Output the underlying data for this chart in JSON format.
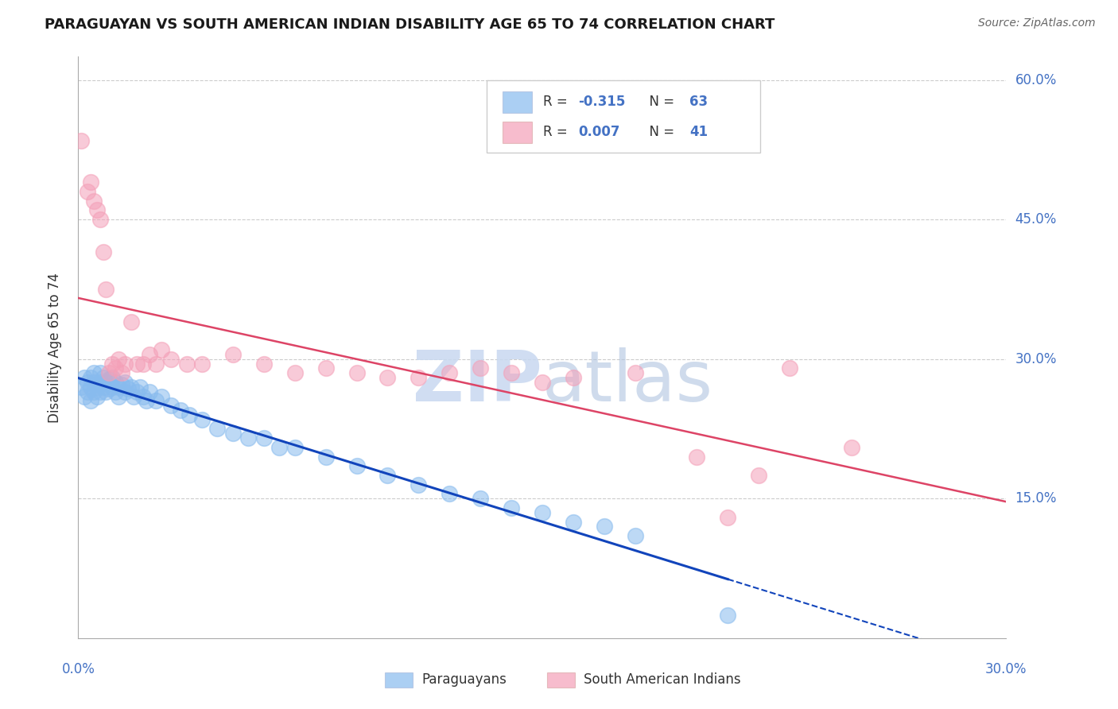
{
  "title": "PARAGUAYAN VS SOUTH AMERICAN INDIAN DISABILITY AGE 65 TO 74 CORRELATION CHART",
  "source": "Source: ZipAtlas.com",
  "ylabel": "Disability Age 65 to 74",
  "xlim": [
    0.0,
    0.3
  ],
  "ylim": [
    0.0,
    0.625
  ],
  "xticks": [
    0.0,
    0.05,
    0.1,
    0.15,
    0.2,
    0.25,
    0.3
  ],
  "yticks": [
    0.15,
    0.3,
    0.45,
    0.6
  ],
  "yticklabels": [
    "15.0%",
    "30.0%",
    "45.0%",
    "60.0%"
  ],
  "blue_color": "#88bbee",
  "pink_color": "#f4a0b8",
  "blue_line_color": "#1144bb",
  "pink_line_color": "#dd4466",
  "watermark_text": "ZIPatlas",
  "blue_R": -0.315,
  "blue_N": 63,
  "pink_R": 0.007,
  "pink_N": 41,
  "blue_scatter_x": [
    0.001,
    0.002,
    0.002,
    0.003,
    0.003,
    0.004,
    0.004,
    0.004,
    0.005,
    0.005,
    0.005,
    0.006,
    0.006,
    0.007,
    0.007,
    0.007,
    0.008,
    0.008,
    0.009,
    0.009,
    0.01,
    0.01,
    0.011,
    0.011,
    0.012,
    0.012,
    0.013,
    0.013,
    0.014,
    0.015,
    0.015,
    0.016,
    0.017,
    0.018,
    0.019,
    0.02,
    0.021,
    0.022,
    0.023,
    0.025,
    0.027,
    0.03,
    0.033,
    0.036,
    0.04,
    0.045,
    0.05,
    0.055,
    0.06,
    0.065,
    0.07,
    0.08,
    0.09,
    0.1,
    0.11,
    0.12,
    0.13,
    0.14,
    0.15,
    0.16,
    0.17,
    0.18,
    0.21
  ],
  "blue_scatter_y": [
    0.27,
    0.26,
    0.28,
    0.265,
    0.275,
    0.255,
    0.27,
    0.28,
    0.265,
    0.275,
    0.285,
    0.26,
    0.27,
    0.275,
    0.285,
    0.265,
    0.27,
    0.28,
    0.265,
    0.275,
    0.268,
    0.278,
    0.27,
    0.28,
    0.265,
    0.275,
    0.27,
    0.26,
    0.272,
    0.275,
    0.265,
    0.268,
    0.27,
    0.26,
    0.265,
    0.27,
    0.26,
    0.255,
    0.265,
    0.255,
    0.26,
    0.25,
    0.245,
    0.24,
    0.235,
    0.225,
    0.22,
    0.215,
    0.215,
    0.205,
    0.205,
    0.195,
    0.185,
    0.175,
    0.165,
    0.155,
    0.15,
    0.14,
    0.135,
    0.125,
    0.12,
    0.11,
    0.025
  ],
  "pink_scatter_x": [
    0.001,
    0.003,
    0.004,
    0.005,
    0.006,
    0.007,
    0.008,
    0.009,
    0.01,
    0.011,
    0.012,
    0.013,
    0.014,
    0.015,
    0.017,
    0.019,
    0.021,
    0.023,
    0.025,
    0.027,
    0.03,
    0.035,
    0.04,
    0.05,
    0.06,
    0.07,
    0.08,
    0.09,
    0.1,
    0.11,
    0.12,
    0.13,
    0.14,
    0.15,
    0.16,
    0.18,
    0.2,
    0.21,
    0.22,
    0.23,
    0.25
  ],
  "pink_scatter_y": [
    0.535,
    0.48,
    0.49,
    0.47,
    0.46,
    0.45,
    0.415,
    0.375,
    0.285,
    0.295,
    0.29,
    0.3,
    0.285,
    0.295,
    0.34,
    0.295,
    0.295,
    0.305,
    0.295,
    0.31,
    0.3,
    0.295,
    0.295,
    0.305,
    0.295,
    0.285,
    0.29,
    0.285,
    0.28,
    0.28,
    0.285,
    0.29,
    0.285,
    0.275,
    0.28,
    0.285,
    0.195,
    0.13,
    0.175,
    0.29,
    0.205
  ]
}
